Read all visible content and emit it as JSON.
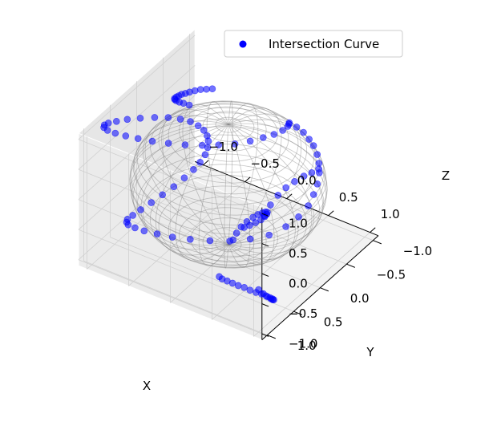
{
  "chart_data": {
    "type": "scatter",
    "projection": "3d",
    "title": "",
    "xlabel": "X",
    "ylabel": "Y",
    "zlabel": "Z",
    "xlim": [
      -1.1,
      1.1
    ],
    "ylim": [
      -1.1,
      1.1
    ],
    "zlim": [
      -1.1,
      1.1
    ],
    "xticks": [
      "−1.0",
      "−0.5",
      "0.0",
      "0.5",
      "1.0"
    ],
    "yticks": [
      "−1.0",
      "−0.5",
      "0.0",
      "0.5",
      "1.0"
    ],
    "zticks": [
      "−1.0",
      "−0.5",
      "0.0",
      "0.5",
      "1.0"
    ],
    "grid": true,
    "legend": {
      "placement": "top-right",
      "entries": [
        "Intersection Curve"
      ]
    },
    "colors": {
      "points": "#0000ff",
      "sphere": "#808080",
      "pane": "#f2f2f2",
      "grid": "#d0d0d0"
    },
    "surfaces": [
      {
        "kind": "sphere-wireframe",
        "radius": 1.0
      }
    ],
    "series": [
      {
        "name": "Intersection Curve",
        "marker": "o",
        "points": [
          [
            0.31,
            -0.66,
            0.68
          ],
          [
            0.36,
            -0.72,
            0.59
          ],
          [
            0.41,
            -0.77,
            0.49
          ],
          [
            0.46,
            -0.8,
            0.38
          ],
          [
            0.5,
            -0.82,
            0.28
          ],
          [
            0.55,
            -0.81,
            0.17
          ],
          [
            0.59,
            -0.78,
            0.07
          ],
          [
            0.62,
            -0.74,
            -0.04
          ],
          [
            0.64,
            -0.67,
            -0.16
          ],
          [
            0.64,
            -0.6,
            -0.28
          ],
          [
            0.64,
            -0.5,
            -0.39
          ],
          [
            0.6,
            -0.38,
            -0.5
          ],
          [
            0.53,
            -0.25,
            -0.6
          ],
          [
            0.43,
            -0.09,
            -0.67
          ],
          [
            0.3,
            0.06,
            -0.69
          ],
          [
            0.15,
            0.21,
            -0.69
          ],
          [
            0.0,
            0.35,
            -0.66
          ],
          [
            -0.16,
            0.47,
            -0.63
          ],
          [
            -0.31,
            0.57,
            -0.6
          ],
          [
            -0.45,
            0.64,
            -0.57
          ],
          [
            -0.58,
            0.68,
            -0.56
          ],
          [
            -0.69,
            0.68,
            -0.57
          ],
          [
            -0.79,
            0.65,
            -0.6
          ],
          [
            -0.86,
            0.57,
            -0.66
          ],
          [
            -0.92,
            0.46,
            -0.73
          ],
          [
            -0.95,
            0.31,
            -0.8
          ],
          [
            -0.97,
            0.13,
            -0.86
          ],
          [
            -0.97,
            -0.07,
            -0.9
          ],
          [
            -0.95,
            -0.25,
            -0.9
          ],
          [
            -0.91,
            -0.4,
            -0.86
          ],
          [
            -0.86,
            -0.52,
            -0.78
          ],
          [
            -0.8,
            -0.6,
            -0.67
          ],
          [
            -0.74,
            -0.63,
            -0.54
          ],
          [
            -0.68,
            -0.63,
            -0.38
          ],
          [
            -0.63,
            -0.6,
            -0.21
          ],
          [
            -0.59,
            -0.55,
            -0.04
          ],
          [
            -0.56,
            -0.48,
            0.12
          ],
          [
            -0.55,
            -0.4,
            0.28
          ],
          [
            -0.56,
            -0.31,
            0.42
          ],
          [
            -0.59,
            -0.21,
            0.55
          ],
          [
            -0.64,
            -0.1,
            0.65
          ],
          [
            -0.71,
            0.02,
            0.73
          ],
          [
            -0.79,
            0.15,
            0.79
          ],
          [
            -0.88,
            0.28,
            0.83
          ],
          [
            -0.96,
            0.4,
            0.86
          ],
          [
            -1.02,
            0.51,
            0.88
          ],
          [
            -1.06,
            0.6,
            0.9
          ],
          [
            -1.07,
            0.66,
            0.91
          ],
          [
            -1.05,
            0.7,
            0.91
          ],
          [
            -1.0,
            0.71,
            0.9
          ],
          [
            -0.92,
            0.69,
            0.88
          ],
          [
            -0.82,
            0.65,
            0.86
          ],
          [
            -0.71,
            0.59,
            0.83
          ],
          [
            -0.59,
            0.51,
            0.79
          ],
          [
            -0.46,
            0.41,
            0.75
          ],
          [
            -0.33,
            0.3,
            0.71
          ],
          [
            -0.2,
            0.18,
            0.68
          ],
          [
            -0.08,
            0.06,
            0.66
          ],
          [
            0.04,
            -0.06,
            0.65
          ],
          [
            0.14,
            -0.19,
            0.65
          ],
          [
            0.22,
            -0.31,
            0.66
          ],
          [
            0.28,
            -0.42,
            0.66
          ],
          [
            0.32,
            -0.52,
            0.67
          ],
          [
            0.33,
            -0.6,
            0.68
          ],
          [
            0.32,
            -0.64,
            0.68
          ],
          [
            0.56,
            0.2,
            -0.05
          ],
          [
            0.58,
            0.12,
            0.08
          ],
          [
            0.62,
            0.04,
            0.2
          ],
          [
            0.67,
            -0.03,
            0.3
          ],
          [
            0.73,
            -0.1,
            0.38
          ],
          [
            0.79,
            -0.18,
            0.44
          ],
          [
            0.84,
            -0.25,
            0.47
          ],
          [
            0.88,
            -0.32,
            0.5
          ],
          [
            -0.65,
            -0.72,
            0.66
          ],
          [
            -0.74,
            -0.75,
            0.58
          ],
          [
            -0.83,
            -0.78,
            0.5
          ],
          [
            -0.91,
            -0.8,
            0.42
          ],
          [
            -0.98,
            -0.81,
            0.35
          ],
          [
            -1.03,
            -0.81,
            0.3
          ],
          [
            -1.07,
            -0.8,
            0.27
          ],
          [
            -1.09,
            -0.78,
            0.25
          ],
          [
            -1.1,
            -0.75,
            0.25
          ],
          [
            -1.09,
            -0.7,
            0.27
          ],
          [
            -1.05,
            -0.64,
            0.32
          ],
          [
            -0.99,
            -0.57,
            0.39
          ],
          [
            -0.9,
            -0.49,
            0.48
          ],
          [
            -0.8,
            -0.41,
            0.58
          ],
          [
            -0.68,
            -0.33,
            0.68
          ],
          [
            0.92,
            0.88,
            -0.54
          ],
          [
            0.95,
            0.84,
            -0.62
          ],
          [
            0.97,
            0.79,
            -0.7
          ],
          [
            0.98,
            0.74,
            -0.77
          ],
          [
            0.97,
            0.69,
            -0.83
          ],
          [
            0.95,
            0.64,
            -0.88
          ],
          [
            0.91,
            0.6,
            -0.92
          ],
          [
            0.86,
            0.57,
            -0.95
          ],
          [
            0.8,
            0.55,
            -0.97
          ],
          [
            0.74,
            0.54,
            -0.98
          ],
          [
            0.68,
            0.55,
            -0.98
          ],
          [
            0.62,
            0.57,
            -0.96
          ],
          [
            0.57,
            0.6,
            -0.92
          ],
          [
            0.53,
            0.65,
            -0.87
          ],
          [
            0.5,
            0.71,
            -0.8
          ],
          [
            0.48,
            0.78,
            -0.72
          ],
          [
            0.47,
            0.86,
            -0.63
          ],
          [
            0.48,
            0.93,
            -0.53
          ],
          [
            0.76,
            0.9,
            0.42
          ],
          [
            0.82,
            0.89,
            0.48
          ],
          [
            0.87,
            0.86,
            0.53
          ],
          [
            0.91,
            0.82,
            0.57
          ],
          [
            0.93,
            0.78,
            0.6
          ],
          [
            0.93,
            0.74,
            0.61
          ],
          [
            0.91,
            0.7,
            0.6
          ],
          [
            0.87,
            0.67,
            0.56
          ],
          [
            0.82,
            0.65,
            0.5
          ],
          [
            0.76,
            0.64,
            0.43
          ],
          [
            0.7,
            0.64,
            0.35
          ],
          [
            0.64,
            0.66,
            0.26
          ],
          [
            0.59,
            0.69,
            0.17
          ],
          [
            0.56,
            0.73,
            0.08
          ],
          [
            0.55,
            0.78,
            0.0
          ]
        ]
      }
    ]
  }
}
